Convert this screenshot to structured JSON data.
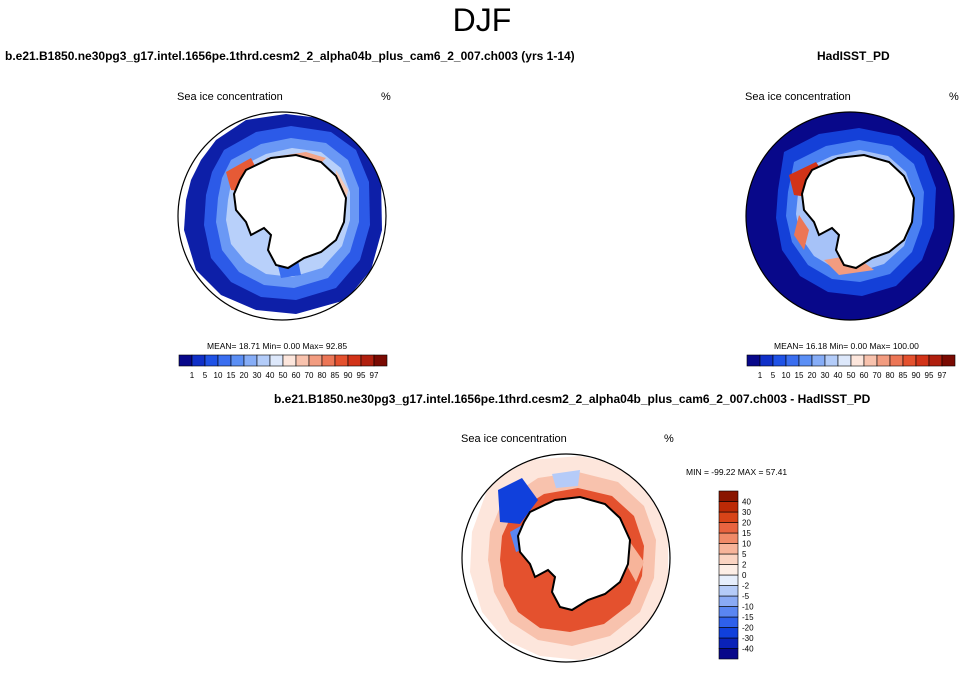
{
  "season": "DJF",
  "panel_left": {
    "title": "b.e21.B1850.ne30pg3_g17.intel.1656pe.1thrd.cesm2_2_alpha04b_plus_cam6_2_007.ch003 (yrs 1-14)",
    "variable": "Sea ice concentration",
    "units": "%",
    "stats": "MEAN=  18.71  Min=   0.00  Max=  92.85"
  },
  "panel_right": {
    "title": "HadISST_PD",
    "variable": "Sea ice concentration",
    "units": "%",
    "stats": "MEAN=  16.18  Min=   0.00  Max= 100.00"
  },
  "panel_diff": {
    "title": "b.e21.B1850.ne30pg3_g17.intel.1656pe.1thrd.cesm2_2_alpha04b_plus_cam6_2_007.ch003 - HadISST_PD",
    "variable": "Sea ice concentration",
    "units": "%",
    "stats": "MIN = -99.22 MAX =  57.41"
  },
  "colorbar_main": {
    "colors": [
      "#08088a",
      "#1030c8",
      "#1f52e6",
      "#3a6ef0",
      "#5b8ff5",
      "#86adf7",
      "#b3ccf9",
      "#dde8fb",
      "#fde6dc",
      "#f8c2ad",
      "#f29c80",
      "#ec7656",
      "#e4512e",
      "#d23318",
      "#b01f0e",
      "#7a0a02"
    ],
    "labels": [
      "1",
      "5",
      "10",
      "15",
      "20",
      "30",
      "40",
      "50",
      "60",
      "70",
      "80",
      "85",
      "90",
      "95",
      "97"
    ]
  },
  "colorbar_diff": {
    "colors": [
      "#08088a",
      "#0a22b8",
      "#1040dc",
      "#2e60ec",
      "#5a86f2",
      "#8aaaf5",
      "#b5cbf8",
      "#e6eefc",
      "#fdeee6",
      "#fbd4c2",
      "#f7b49a",
      "#f08a68",
      "#e86440",
      "#d84418",
      "#bc2a06",
      "#8a1600"
    ],
    "labels": [
      "-40",
      "-30",
      "-20",
      "-15",
      "-10",
      "-5",
      "-2",
      "0",
      "2",
      "5",
      "10",
      "15",
      "20",
      "30",
      "40"
    ]
  }
}
